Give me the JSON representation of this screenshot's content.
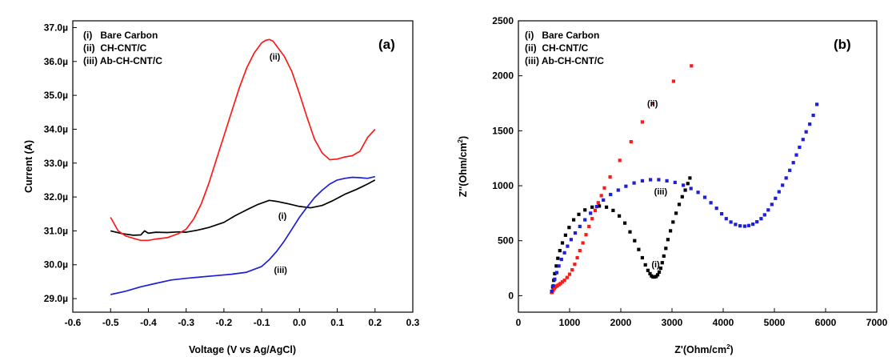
{
  "chart_data": [
    {
      "type": "line",
      "panel_label": "(a)",
      "xlabel": "Voltage (V vs Ag/AgCl)",
      "ylabel": "Current (A)",
      "xlim": [
        -0.6,
        0.3
      ],
      "ylim": [
        28.6,
        37.2
      ],
      "xticks": [
        -0.6,
        -0.5,
        -0.4,
        -0.3,
        -0.2,
        -0.1,
        0.0,
        0.1,
        0.2,
        0.3
      ],
      "xtick_labels": [
        "-0.6",
        "-0.5",
        "-0.4",
        "-0.3",
        "-0.2",
        "-0.1",
        "0.0",
        "0.1",
        "0.2",
        "0.3"
      ],
      "yticks": [
        29,
        30,
        31,
        32,
        33,
        34,
        35,
        36,
        37
      ],
      "ytick_labels": [
        "29.0µ",
        "30.0µ",
        "31.0µ",
        "32.0µ",
        "33.0µ",
        "34.0µ",
        "35.0µ",
        "36.0µ",
        "37.0µ"
      ],
      "legend": [
        "(i)   Bare Carbon",
        "(ii)  CH-CNT/C",
        "(iii) Ab-CH-CNT/C"
      ],
      "legend_position": "top-left",
      "series": [
        {
          "color": "#000000",
          "annotation": "(i)",
          "annotation_at": [
            -0.045,
            31.45
          ],
          "x": [
            -0.5,
            -0.47,
            -0.44,
            -0.42,
            -0.41,
            -0.4,
            -0.38,
            -0.35,
            -0.32,
            -0.3,
            -0.27,
            -0.24,
            -0.2,
            -0.17,
            -0.14,
            -0.11,
            -0.08,
            -0.06,
            -0.03,
            0.0,
            0.03,
            0.06,
            0.09,
            0.12,
            0.15,
            0.18,
            0.2
          ],
          "values": [
            31.0,
            30.92,
            30.87,
            30.88,
            31.0,
            30.93,
            30.96,
            30.95,
            30.97,
            30.96,
            31.02,
            31.1,
            31.25,
            31.45,
            31.62,
            31.78,
            31.9,
            31.87,
            31.8,
            31.72,
            31.68,
            31.75,
            31.9,
            32.08,
            32.22,
            32.38,
            32.5
          ]
        },
        {
          "color": "#ff1a1a",
          "annotation": "(ii)",
          "annotation_at": [
            -0.065,
            36.15
          ],
          "x": [
            -0.5,
            -0.48,
            -0.46,
            -0.44,
            -0.42,
            -0.4,
            -0.38,
            -0.35,
            -0.32,
            -0.3,
            -0.28,
            -0.26,
            -0.24,
            -0.22,
            -0.2,
            -0.18,
            -0.16,
            -0.14,
            -0.12,
            -0.1,
            -0.09,
            -0.08,
            -0.07,
            -0.06,
            -0.04,
            -0.02,
            0.0,
            0.02,
            0.04,
            0.06,
            0.08,
            0.1,
            0.12,
            0.14,
            0.16,
            0.18,
            0.2
          ],
          "values": [
            31.4,
            31.0,
            30.85,
            30.78,
            30.72,
            30.72,
            30.76,
            30.8,
            30.92,
            31.05,
            31.35,
            31.8,
            32.4,
            33.1,
            33.8,
            34.5,
            35.2,
            35.8,
            36.25,
            36.55,
            36.62,
            36.65,
            36.6,
            36.45,
            36.15,
            35.7,
            35.05,
            34.35,
            33.7,
            33.3,
            33.1,
            33.12,
            33.18,
            33.22,
            33.35,
            33.75,
            34.0
          ]
        },
        {
          "color": "#1f1fd6",
          "annotation": "(iii)",
          "annotation_at": [
            -0.05,
            29.85
          ],
          "x": [
            -0.5,
            -0.46,
            -0.42,
            -0.38,
            -0.34,
            -0.3,
            -0.26,
            -0.22,
            -0.18,
            -0.14,
            -0.1,
            -0.08,
            -0.06,
            -0.04,
            -0.02,
            0.0,
            0.02,
            0.04,
            0.06,
            0.08,
            0.1,
            0.12,
            0.14,
            0.16,
            0.18,
            0.2
          ],
          "values": [
            29.12,
            29.22,
            29.35,
            29.45,
            29.55,
            29.6,
            29.64,
            29.68,
            29.72,
            29.78,
            29.95,
            30.15,
            30.4,
            30.7,
            31.05,
            31.4,
            31.7,
            31.98,
            32.2,
            32.38,
            32.5,
            32.55,
            32.58,
            32.57,
            32.55,
            32.6
          ]
        }
      ]
    },
    {
      "type": "scatter",
      "panel_label": "(b)",
      "xlabel": "Z'(Ohm/cm",
      "xlabel_sup": "2",
      "xlabel_end": ")",
      "ylabel": "Z''(Ohm/cm",
      "ylabel_sup": "2",
      "ylabel_end": ")",
      "xlim": [
        0,
        7000
      ],
      "ylim": [
        -150,
        2500
      ],
      "xticks": [
        0,
        1000,
        2000,
        3000,
        4000,
        5000,
        6000,
        7000
      ],
      "xtick_labels": [
        "0",
        "1000",
        "2000",
        "3000",
        "4000",
        "5000",
        "6000",
        "7000"
      ],
      "yticks": [
        0,
        500,
        1000,
        1500,
        2000,
        2500
      ],
      "ytick_labels": [
        "0",
        "500",
        "1000",
        "1500",
        "2000",
        "2500"
      ],
      "legend": [
        "(i)   Bare Carbon",
        "(ii)  CH-CNT/C",
        "(iii) Ab-CH-CNT/C"
      ],
      "legend_position": "top-left",
      "series": [
        {
          "color": "#000000",
          "annotation": "(i)",
          "annotation_at": [
            2680,
            285
          ],
          "x": [
            650,
            670,
            690,
            710,
            740,
            770,
            810,
            860,
            920,
            990,
            1080,
            1180,
            1300,
            1440,
            1580,
            1720,
            1850,
            1970,
            2080,
            2180,
            2270,
            2350,
            2420,
            2480,
            2530,
            2570,
            2600,
            2630,
            2660,
            2690,
            2720,
            2750,
            2780,
            2810,
            2840,
            2880,
            2920,
            2970,
            3020,
            3080,
            3140,
            3200,
            3260,
            3310,
            3350
          ],
          "values": [
            30,
            80,
            140,
            200,
            270,
            340,
            410,
            480,
            550,
            620,
            690,
            740,
            780,
            805,
            815,
            805,
            775,
            725,
            660,
            580,
            500,
            420,
            345,
            280,
            230,
            200,
            180,
            170,
            170,
            175,
            190,
            215,
            250,
            300,
            360,
            430,
            510,
            590,
            670,
            750,
            830,
            900,
            960,
            1020,
            1070
          ]
        },
        {
          "color": "#ff1a1a",
          "annotation": "(ii)",
          "annotation_at": [
            2620,
            1750
          ],
          "x": [
            660,
            680,
            700,
            720,
            740,
            760,
            790,
            820,
            860,
            900,
            950,
            1000,
            1050,
            1100,
            1150,
            1200,
            1260,
            1320,
            1380,
            1440,
            1500,
            1560,
            1620,
            1680,
            1790,
            1980,
            2200,
            2420,
            2620,
            3030,
            3380
          ],
          "values": [
            30,
            50,
            65,
            78,
            85,
            92,
            100,
            110,
            125,
            140,
            165,
            195,
            235,
            285,
            345,
            410,
            480,
            555,
            630,
            700,
            775,
            845,
            910,
            980,
            1080,
            1230,
            1400,
            1580,
            1750,
            1950,
            2090
          ]
        },
        {
          "color": "#1f1fd6",
          "annotation": "(iii)",
          "annotation_at": [
            2780,
            950
          ],
          "x": [
            650,
            680,
            710,
            750,
            790,
            840,
            900,
            960,
            1030,
            1110,
            1200,
            1300,
            1410,
            1530,
            1660,
            1800,
            1950,
            2100,
            2260,
            2420,
            2580,
            2740,
            2900,
            3060,
            3220,
            3370,
            3510,
            3640,
            3760,
            3870,
            3970,
            4060,
            4150,
            4240,
            4330,
            4420,
            4500,
            4580,
            4660,
            4740,
            4810,
            4880,
            4950,
            5020,
            5090,
            5160,
            5230,
            5300,
            5370,
            5430,
            5490,
            5560,
            5620,
            5690,
            5760,
            5830
          ],
          "values": [
            40,
            90,
            150,
            210,
            270,
            330,
            390,
            450,
            510,
            570,
            630,
            690,
            750,
            810,
            870,
            920,
            960,
            995,
            1025,
            1045,
            1055,
            1055,
            1045,
            1030,
            1005,
            975,
            940,
            895,
            845,
            795,
            745,
            700,
            670,
            648,
            635,
            632,
            638,
            650,
            672,
            700,
            735,
            780,
            830,
            885,
            945,
            1005,
            1070,
            1140,
            1210,
            1280,
            1350,
            1420,
            1490,
            1560,
            1640,
            1740
          ]
        }
      ]
    }
  ]
}
